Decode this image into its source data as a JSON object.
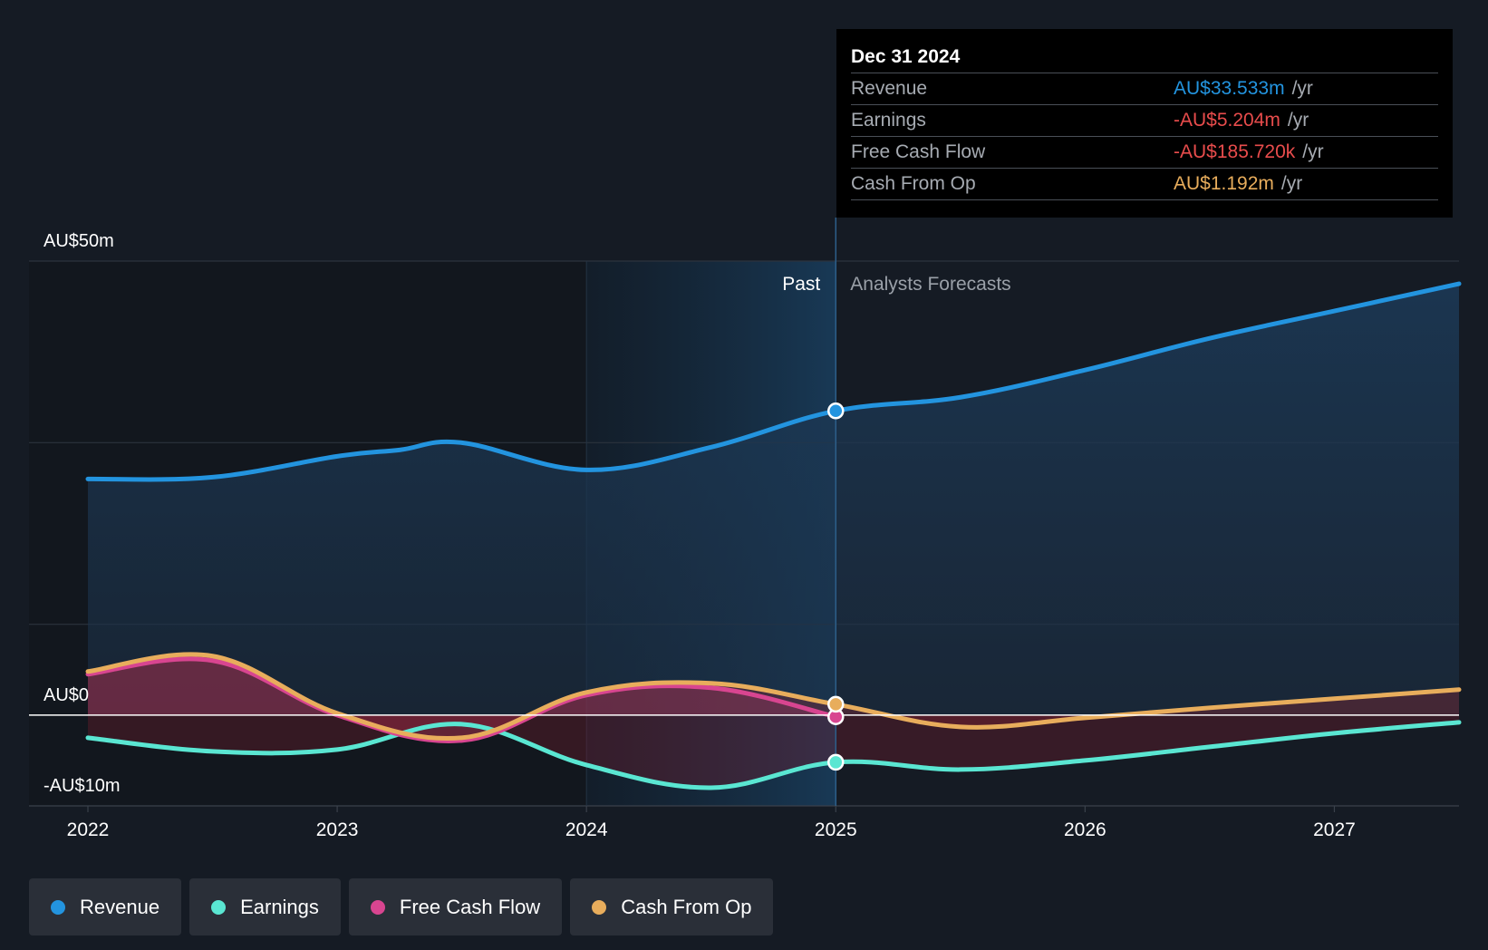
{
  "chart_data": {
    "type": "area",
    "y_axis": {
      "min": -10,
      "max": 50,
      "unit": "AU$m",
      "labels": [
        "AU$50m",
        "AU$0",
        "-AU$10m"
      ]
    },
    "x_axis": {
      "min": 2022,
      "max": 2027.5,
      "tick_labels": [
        "2022",
        "2023",
        "2024",
        "2025",
        "2026",
        "2027"
      ]
    },
    "regions": {
      "past_label": "Past",
      "forecast_label": "Analysts Forecasts",
      "divider_year": 2025,
      "highlight_start_year": 2024
    },
    "series": [
      {
        "name": "Revenue",
        "color": "#2394df",
        "x": [
          2022,
          2022.5,
          2023,
          2023.25,
          2023.5,
          2024,
          2024.5,
          2025,
          2025.5,
          2026,
          2026.5,
          2027,
          2027.5
        ],
        "y": [
          26,
          26.2,
          28.5,
          29.2,
          30,
          27,
          29.5,
          33.5,
          35,
          38,
          41.5,
          44.5,
          47.5
        ]
      },
      {
        "name": "Earnings",
        "color": "#5ae6d2",
        "x": [
          2022,
          2022.5,
          2023,
          2023.5,
          2024,
          2024.5,
          2025,
          2025.5,
          2026,
          2026.5,
          2027,
          2027.5
        ],
        "y": [
          -2.5,
          -4,
          -3.8,
          -1,
          -5.5,
          -8,
          -5.2,
          -6,
          -5,
          -3.5,
          -2,
          -0.8
        ]
      },
      {
        "name": "Free Cash Flow",
        "color": "#d84590",
        "x": [
          2022,
          2022.5,
          2023,
          2023.5,
          2024,
          2024.5,
          2025
        ],
        "y": [
          4.5,
          6,
          0,
          -2.8,
          2.2,
          3,
          -0.19
        ]
      },
      {
        "name": "Cash From Op",
        "color": "#e8ad5c",
        "x": [
          2022,
          2022.5,
          2023,
          2023.5,
          2024,
          2024.5,
          2025,
          2025.5,
          2026,
          2026.5,
          2027,
          2027.5
        ],
        "y": [
          4.8,
          6.5,
          0.2,
          -2.5,
          2.5,
          3.5,
          1.19,
          -1.3,
          -0.3,
          0.8,
          1.8,
          2.8
        ]
      }
    ],
    "tooltip": {
      "date": "Dec 31 2024",
      "rows": [
        {
          "label": "Revenue",
          "value": "AU$33.533m",
          "unit": "/yr",
          "color": "#2394df"
        },
        {
          "label": "Earnings",
          "value": "-AU$5.204m",
          "unit": "/yr",
          "color": "#e84c4c"
        },
        {
          "label": "Free Cash Flow",
          "value": "-AU$185.720k",
          "unit": "/yr",
          "color": "#e84c4c"
        },
        {
          "label": "Cash From Op",
          "value": "AU$1.192m",
          "unit": "/yr",
          "color": "#e8ad5c"
        }
      ]
    }
  },
  "legend": [
    {
      "label": "Revenue",
      "color": "#2394df"
    },
    {
      "label": "Earnings",
      "color": "#5ae6d2"
    },
    {
      "label": "Free Cash Flow",
      "color": "#d84590"
    },
    {
      "label": "Cash From Op",
      "color": "#e8ad5c"
    }
  ]
}
